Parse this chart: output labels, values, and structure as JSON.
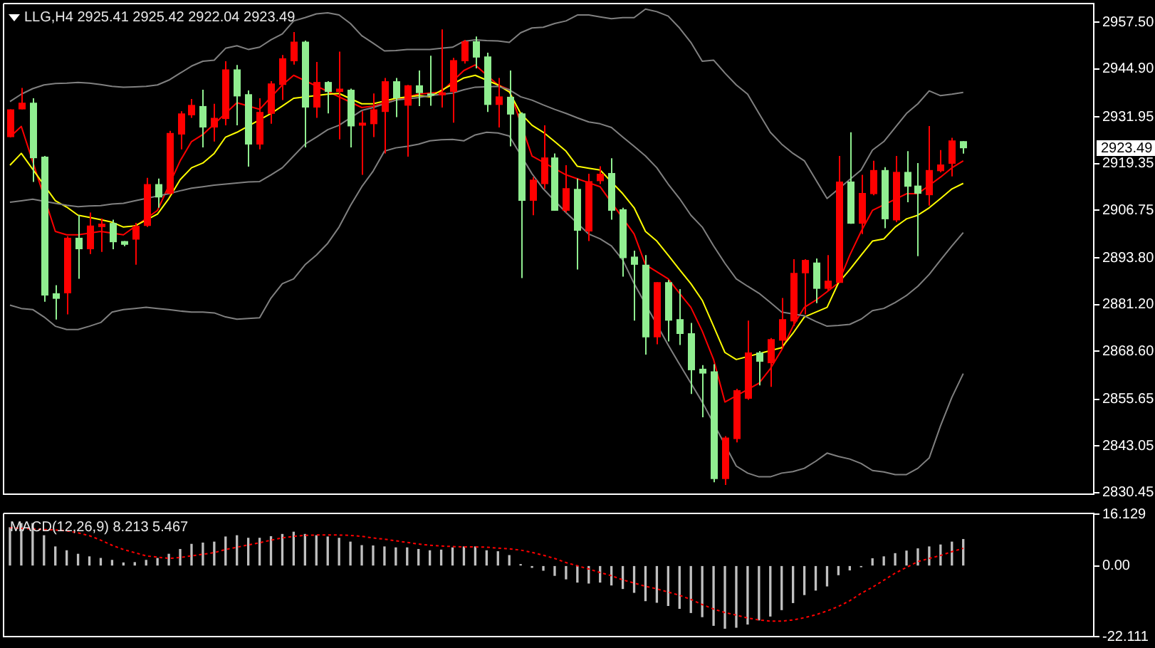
{
  "chart_data": [
    {
      "type": "candlestick",
      "title": "LLG,H4 2925.41 2925.42 2922.04 2923.49",
      "categories": [
        null,
        null,
        null,
        null,
        null,
        null,
        null,
        null,
        null,
        null,
        null,
        null,
        null,
        null,
        null,
        null,
        null,
        null,
        null,
        null,
        null,
        null,
        null,
        null,
        null,
        null,
        null,
        null,
        null,
        null,
        null,
        null,
        null,
        null,
        null,
        null,
        null,
        null,
        null,
        null,
        null,
        null,
        null,
        null,
        null,
        null,
        null,
        null,
        null,
        null,
        null,
        null,
        null,
        null,
        null,
        null,
        null,
        null,
        null,
        null,
        null,
        null,
        null,
        null,
        null,
        null,
        null,
        null,
        null,
        null,
        null,
        null,
        null,
        null,
        null,
        null,
        null,
        null,
        null,
        null,
        null,
        null,
        null,
        null,
        null
      ],
      "ohlc": [
        [
          2926.5,
          2934.0,
          2926.5,
          2934.0
        ],
        [
          2934.0,
          2939.8,
          2934.0,
          2935.8
        ],
        [
          2935.8,
          2937.0,
          2914.4,
          2920.8
        ],
        [
          2921.2,
          2921.4,
          2882.0,
          2883.7
        ],
        [
          2884.3,
          2886.5,
          2877.2,
          2882.8
        ],
        [
          2884.3,
          2899.7,
          2878.6,
          2899.3
        ],
        [
          2899.3,
          2905.4,
          2888.2,
          2896.2
        ],
        [
          2896.2,
          2906.1,
          2894.9,
          2902.6
        ],
        [
          2902.2,
          2904.5,
          2895.5,
          2903.1
        ],
        [
          2903.3,
          2904.2,
          2896.2,
          2898.1
        ],
        [
          2898.4,
          2898.4,
          2897.0,
          2897.4
        ],
        [
          2898.8,
          2903.3,
          2892.0,
          2902.5
        ],
        [
          2902.5,
          2915.5,
          2902.2,
          2913.8
        ],
        [
          2913.8,
          2915.3,
          2907.4,
          2910.2
        ],
        [
          2911.2,
          2928.2,
          2910.9,
          2927.6
        ],
        [
          2927.2,
          2933.5,
          2923.2,
          2932.9
        ],
        [
          2932.4,
          2936.8,
          2931.7,
          2935.2
        ],
        [
          2934.9,
          2939.3,
          2923.7,
          2929.1
        ],
        [
          2929.1,
          2935.5,
          2925.3,
          2931.7
        ],
        [
          2931.4,
          2947.0,
          2929.7,
          2944.8
        ],
        [
          2944.8,
          2946.0,
          2929.7,
          2937.5
        ],
        [
          2938.1,
          2939.1,
          2918.5,
          2924.5
        ],
        [
          2924.5,
          2937.0,
          2923.2,
          2933.3
        ],
        [
          2932.8,
          2941.6,
          2930.1,
          2941.0
        ],
        [
          2940.6,
          2948.7,
          2936.5,
          2947.8
        ],
        [
          2947.0,
          2954.9,
          2946.1,
          2952.3
        ],
        [
          2952.3,
          2952.6,
          2923.7,
          2934.5
        ],
        [
          2934.5,
          2946.8,
          2931.7,
          2941.4
        ],
        [
          2941.4,
          2941.6,
          2932.9,
          2938.7
        ],
        [
          2938.7,
          2949.6,
          2925.9,
          2939.6
        ],
        [
          2939.3,
          2939.6,
          2923.7,
          2929.4
        ],
        [
          2929.6,
          2933.5,
          2916.3,
          2930.4
        ],
        [
          2930.0,
          2938.3,
          2926.5,
          2934.0
        ],
        [
          2933.3,
          2942.5,
          2922.1,
          2941.6
        ],
        [
          2941.6,
          2942.5,
          2931.9,
          2937.0
        ],
        [
          2935.0,
          2940.6,
          2921.2,
          2940.5
        ],
        [
          2940.5,
          2944.5,
          2934.9,
          2938.4
        ],
        [
          2938.3,
          2948.5,
          2935.0,
          2937.7
        ],
        [
          2937.8,
          2955.6,
          2934.5,
          2938.6
        ],
        [
          2938.7,
          2947.9,
          2930.4,
          2947.3
        ],
        [
          2947.0,
          2952.8,
          2946.4,
          2952.4
        ],
        [
          2952.4,
          2953.7,
          2945.1,
          2948.0
        ],
        [
          2948.3,
          2949.3,
          2933.3,
          2935.2
        ],
        [
          2935.2,
          2942.5,
          2929.1,
          2937.5
        ],
        [
          2937.4,
          2944.5,
          2924.0,
          2932.6
        ],
        [
          2932.9,
          2933.2,
          2888.4,
          2909.3
        ],
        [
          2909.3,
          2915.7,
          2905.4,
          2915.0
        ],
        [
          2913.8,
          2929.7,
          2912.5,
          2921.0
        ],
        [
          2921.0,
          2922.1,
          2906.6,
          2906.6
        ],
        [
          2906.6,
          2918.9,
          2906.1,
          2912.7
        ],
        [
          2912.5,
          2915.3,
          2890.7,
          2901.2
        ],
        [
          2901.0,
          2916.6,
          2898.4,
          2914.6
        ],
        [
          2914.6,
          2918.6,
          2913.8,
          2916.6
        ],
        [
          2916.8,
          2920.8,
          2904.2,
          2906.6
        ],
        [
          2907.0,
          2907.4,
          2888.8,
          2893.8
        ],
        [
          2894.2,
          2895.8,
          2876.9,
          2892.0
        ],
        [
          2892.0,
          2894.6,
          2867.7,
          2872.4
        ],
        [
          2872.4,
          2887.3,
          2870.5,
          2887.3
        ],
        [
          2887.3,
          2887.9,
          2871.3,
          2876.9
        ],
        [
          2877.3,
          2885.4,
          2870.3,
          2873.3
        ],
        [
          2873.5,
          2876.3,
          2857.1,
          2863.5
        ],
        [
          2863.9,
          2864.9,
          2850.8,
          2862.6
        ],
        [
          2863.2,
          2865.1,
          2833.2,
          2834.1
        ],
        [
          2834.1,
          2845.7,
          2832.5,
          2845.3
        ],
        [
          2844.9,
          2858.5,
          2844.0,
          2858.1
        ],
        [
          2855.8,
          2876.9,
          2855.5,
          2868.3
        ],
        [
          2868.3,
          2868.7,
          2859.4,
          2865.8
        ],
        [
          2865.4,
          2872.2,
          2859.0,
          2871.9
        ],
        [
          2871.5,
          2883.0,
          2869.6,
          2877.3
        ],
        [
          2876.7,
          2893.5,
          2875.4,
          2889.8
        ],
        [
          2889.7,
          2893.5,
          2878.6,
          2893.3
        ],
        [
          2892.6,
          2893.7,
          2881.6,
          2885.5
        ],
        [
          2885.5,
          2894.6,
          2885.0,
          2887.7
        ],
        [
          2887.1,
          2921.4,
          2887.1,
          2914.5
        ],
        [
          2914.5,
          2927.8,
          2903.1,
          2903.1
        ],
        [
          2903.1,
          2916.3,
          2900.3,
          2911.4
        ],
        [
          2911.1,
          2920.1,
          2910.8,
          2917.6
        ],
        [
          2917.6,
          2918.4,
          2901.9,
          2904.3
        ],
        [
          2904.0,
          2921.4,
          2903.5,
          2917.1
        ],
        [
          2917.1,
          2922.7,
          2908.9,
          2913.1
        ],
        [
          2913.4,
          2919.5,
          2894.3,
          2911.2
        ],
        [
          2910.8,
          2929.5,
          2908.0,
          2917.6
        ],
        [
          2917.3,
          2923.0,
          2917.0,
          2919.1
        ],
        [
          2919.3,
          2926.3,
          2915.9,
          2925.6
        ],
        [
          2925.41,
          2925.42,
          2922.04,
          2923.49
        ]
      ],
      "colors": [
        "#ff0000",
        "#ff0000",
        "#90ee90",
        "#90ee90",
        "#90ee90",
        "#ff0000",
        "#90ee90",
        "#ff0000",
        "#ff0000",
        "#90ee90",
        "#90ee90",
        "#ff0000",
        "#ff0000",
        "#90ee90",
        "#ff0000",
        "#ff0000",
        "#ff0000",
        "#90ee90",
        "#ff0000",
        "#ff0000",
        "#90ee90",
        "#90ee90",
        "#ff0000",
        "#ff0000",
        "#ff0000",
        "#ff0000",
        "#90ee90",
        "#ff0000",
        "#90ee90",
        "#ff0000",
        "#90ee90",
        "#ff0000",
        "#ff0000",
        "#ff0000",
        "#90ee90",
        "#ff0000",
        "#90ee90",
        "#90ee90",
        "#ff0000",
        "#ff0000",
        "#ff0000",
        "#90ee90",
        "#90ee90",
        "#ff0000",
        "#90ee90",
        "#90ee90",
        "#ff0000",
        "#ff0000",
        "#90ee90",
        "#ff0000",
        "#90ee90",
        "#ff0000",
        "#ff0000",
        "#90ee90",
        "#90ee90",
        "#90ee90",
        "#90ee90",
        "#ff0000",
        "#90ee90",
        "#90ee90",
        "#90ee90",
        "#90ee90",
        "#90ee90",
        "#ff0000",
        "#ff0000",
        "#ff0000",
        "#90ee90",
        "#ff0000",
        "#ff0000",
        "#ff0000",
        "#ff0000",
        "#90ee90",
        "#ff0000",
        "#ff0000",
        "#90ee90",
        "#ff0000",
        "#ff0000",
        "#90ee90",
        "#ff0000",
        "#90ee90",
        "#90ee90",
        "#ff0000",
        "#ff0000",
        "#ff0000",
        "#90ee90"
      ],
      "series": [
        {
          "type": "line",
          "color": "#808080",
          "values": [
            2936.1,
            2938.1,
            2939.6,
            2940.6,
            2941.0,
            2941.1,
            2941.3,
            2941.1,
            2940.7,
            2940.2,
            2940.0,
            2940.1,
            2940.2,
            2940.6,
            2941.9,
            2943.8,
            2945.7,
            2947.0,
            2947.3,
            2950.5,
            2951.2,
            2950.2,
            2950.8,
            2952.8,
            2954.4,
            2957.9,
            2958.8,
            2959.8,
            2960.1,
            2959.5,
            2957.2,
            2953.9,
            2951.9,
            2949.8,
            2949.9,
            2950.2,
            2950.2,
            2950.2,
            2950.5,
            2950.8,
            2952.4,
            2952.8,
            2952.6,
            2952.5,
            2952.1,
            2954.7,
            2956.0,
            2956.2,
            2957.2,
            2957.9,
            2959.5,
            2959.5,
            2959.0,
            2958.5,
            2958.8,
            2958.8,
            2961.1,
            2960.4,
            2959.2,
            2956.0,
            2952.1,
            2947.0,
            2947.3,
            2943.8,
            2940.6,
            2938.1,
            2932.9,
            2927.8,
            2924.6,
            2922.1,
            2920.1,
            2915.0,
            2909.9,
            null,
            null,
            2917.6,
            2923.0,
            2925.3,
            2929.1,
            2932.9,
            2935.5,
            2939.0,
            2937.7,
            2938.1,
            2938.6
          ]
        },
        {
          "type": "line",
          "color": "#808080",
          "values": [
            2908.9,
            2909.3,
            2909.7,
            null,
            2908.6,
            2908.1,
            2907.7,
            2907.9,
            2908.0,
            2908.4,
            2908.6,
            2909.3,
            null,
            null,
            2911.2,
            2912.0,
            2912.7,
            2913.1,
            2913.5,
            2913.8,
            2914.1,
            2914.4,
            2914.5,
            2916.3,
            2918.2,
            2921.4,
            2924.6,
            2926.5,
            2928.5,
            2929.7,
            null,
            2933.7,
            2934.5,
            null,
            2936.5,
            null,
            2937.2,
            2937.7,
            null,
            2938.4,
            2939.3,
            2940.0,
            null,
            2940.2,
            2939.3,
            2937.4,
            2936.5,
            2935.2,
            2934.0,
            2932.9,
            2931.7,
            2930.6,
            2930.1,
            2929.1,
            2926.5,
            2924.0,
            2921.4,
            2918.2,
            2913.8,
            2909.9,
            2905.4,
            2902.2,
            2897.1,
            2892.4,
            2888.2,
            2886.2,
            2884.3,
            2881.8,
            2879.2,
            null,
            2878.2,
            2876.7,
            2875.4,
            2875.6,
            2875.9,
            2877.3,
            2879.6,
            2880.2,
            2881.8,
            2883.7,
            2886.2,
            2889.4,
            2893.3,
            2897.1,
            2900.7
          ]
        },
        {
          "type": "line",
          "color": "#808080",
          "values": [
            2881.1,
            2880.2,
            2879.9,
            2877.9,
            2875.4,
            2874.5,
            2874.5,
            2875.4,
            2876.4,
            2879.2,
            2879.9,
            2880.2,
            2880.5,
            2880.2,
            2879.9,
            2879.5,
            2879.2,
            2879.2,
            2879.0,
            2877.9,
            2877.3,
            2877.5,
            2877.7,
            2883.0,
            2886.9,
            2888.2,
            2892.0,
            2894.6,
            2897.8,
            2902.2,
            2908.0,
            2913.1,
            2917.3,
            2922.7,
            2923.6,
            2924.0,
            2924.6,
            2925.5,
            2925.8,
            2925.9,
            2925.5,
            2927.1,
            2927.8,
            2927.6,
            2926.8,
            null,
            2916.6,
            2912.5,
            null,
            2906.1,
            null,
            2900.3,
            2899.0,
            2897.1,
            2893.3,
            2886.9,
            null,
            null,
            2870.3,
            2865.1,
            2860.0,
            2854.9,
            null,
            null,
            2837.6,
            2835.7,
            2834.7,
            2834.7,
            2835.7,
            2836.1,
            2837.0,
            2838.9,
            2841.1,
            2840.2,
            2839.5,
            2838.3,
            2836.4,
            2836.0,
            2835.3,
            2835.3,
            2837.0,
            2839.8,
            2848.5,
            2856.2,
            2862.6
          ]
        },
        {
          "type": "line",
          "color": "#ffff00",
          "values": [
            2918.9,
            2922.1,
            null,
            null,
            2909.3,
            2907.6,
            2905.4,
            2904.8,
            2904.2,
            2903.5,
            2902.2,
            2902.5,
            null,
            2905.7,
            2909.9,
            2915.0,
            2918.2,
            2919.5,
            2922.1,
            2926.5,
            2927.8,
            null,
            null,
            2932.9,
            2934.9,
            2937.0,
            null,
            null,
            2938.1,
            2938.3,
            null,
            2935.5,
            2935.5,
            null,
            2937.0,
            null,
            2937.7,
            2937.4,
            null,
            null,
            2942.5,
            2943.2,
            null,
            2940.6,
            2938.7,
            2932.9,
            2929.7,
            2927.8,
            2925.3,
            2922.7,
            2918.6,
            2918.1,
            2917.6,
            null,
            2911.2,
            2907.4,
            2901.0,
            2898.4,
            2894.6,
            2890.7,
            2886.9,
            2882.4,
            2875.4,
            2868.3,
            2866.4,
            null,
            null,
            null,
            2869.6,
            2873.5,
            2877.9,
            2879.2,
            2880.5,
            2887.1,
            2890.7,
            2894.6,
            2898.4,
            2899.0,
            2902.2,
            2904.4,
            2905.4,
            2907.4,
            2909.9,
            2912.5,
            2914.0
          ]
        },
        {
          "type": "line",
          "color": "#ff0000",
          "values": [
            2926.5,
            2929.4,
            null,
            null,
            2901.0,
            2900.1,
            2900.1,
            null,
            2901.0,
            null,
            2900.1,
            null,
            null,
            2906.7,
            null,
            2920.1,
            2925.3,
            2927.2,
            null,
            null,
            2935.8,
            null,
            2934.0,
            null,
            2940.6,
            2943.2,
            null,
            null,
            null,
            null,
            null,
            2934.5,
            2934.9,
            null,
            null,
            null,
            2938.1,
            null,
            2938.7,
            null,
            2944.5,
            2946.0,
            null,
            2940.6,
            2939.3,
            null,
            2921.4,
            null,
            null,
            2916.3,
            null,
            null,
            2913.1,
            null,
            null,
            2900.3,
            2892.0,
            2890.1,
            2888.2,
            2884.3,
            2880.5,
            2874.1,
            2866.4,
            2854.9,
            null,
            null,
            2860.0,
            2863.9,
            2869.0,
            2875.4,
            2880.5,
            2882.4,
            2884.7,
            2887.1,
            2894.6,
            2901.0,
            2906.7,
            null,
            null,
            2911.2,
            2911.2,
            null,
            2915.7,
            2918.2,
            2920.1
          ]
        }
      ],
      "ylim": [
        2830.0,
        2962.4
      ],
      "yticks": [
        {
          "value": 2957.5,
          "label": "2957.50"
        },
        {
          "value": 2944.9,
          "label": "2944.90"
        },
        2931.95,
        2919.35,
        2906.75,
        {
          "value": 2893.8,
          "label": "2893.80"
        },
        {
          "value": 2881.2,
          "label": "2881.20"
        },
        {
          "value": 2868.6,
          "label": "2868.60"
        },
        2855.65,
        2843.05,
        2830.45
      ],
      "tick_labels": "y",
      "annotations": [
        "2923.49"
      ]
    },
    {
      "type": "bar",
      "title": "MACD(12,26,9) 8.213 5.467",
      "categories": [
        null,
        null,
        null,
        null,
        null,
        null,
        null,
        null,
        null,
        null,
        null,
        null,
        null,
        null,
        null,
        null,
        null,
        null,
        null,
        null,
        null,
        null,
        null,
        null,
        null,
        null,
        null,
        null,
        null,
        null,
        null,
        null,
        null,
        null,
        null,
        null,
        null,
        null,
        null,
        null,
        null,
        null,
        null,
        null,
        null,
        null,
        null,
        null,
        null,
        null,
        null,
        null,
        null,
        null,
        null,
        null,
        null,
        null,
        null,
        null,
        null,
        null,
        null,
        null,
        null,
        null,
        null,
        null,
        null,
        null,
        null,
        null,
        null,
        null,
        null,
        null,
        null,
        null,
        null,
        null,
        null,
        null,
        null,
        null,
        null
      ],
      "series": [
        {
          "type": "bar",
          "color": "#c0c0c0",
          "values": [
            11.9,
            13.2,
            13.2,
            9.4,
            5.9,
            4.7,
            3.6,
            2.8,
            2.3,
            1.7,
            0.9,
            1.0,
            1.7,
            2.3,
            3.6,
            5.1,
            6.7,
            7.1,
            7.4,
            9.0,
            9.4,
            8.6,
            8.6,
            9.1,
            9.8,
            10.5,
            9.8,
            9.4,
            9.0,
            8.6,
            7.4,
            6.3,
            6.2,
            5.9,
            5.6,
            5.6,
            5.1,
            4.7,
            4.9,
            5.6,
            5.9,
            5.9,
            4.7,
            4.4,
            3.2,
            0.4,
            -0.5,
            -1.4,
            -3.0,
            -4.1,
            -5.1,
            -5.4,
            -5.1,
            -6.0,
            -7.1,
            -8.3,
            -10.9,
            -11.4,
            -12.4,
            -13.3,
            -14.6,
            -15.9,
            -18.6,
            -19.5,
            -19.2,
            -18.2,
            -16.9,
            -15.7,
            -13.7,
            -11.5,
            -9.0,
            -7.6,
            -6.3,
            -2.8,
            -1.3,
            -0.3,
            2.2,
            2.8,
            3.8,
            4.6,
            5.3,
            5.9,
            6.5,
            7.4,
            8.213
          ]
        },
        {
          "type": "line",
          "color": "#ff0000",
          "line_style": "dotted",
          "values": [
            11.9,
            11.7,
            11.5,
            11.3,
            11.2,
            10.9,
            10.3,
            9.4,
            8.0,
            6.4,
            5.1,
            4.1,
            3.1,
            2.7,
            2.3,
            2.6,
            3.1,
            3.6,
            4.1,
            5.1,
            5.8,
            6.5,
            7.2,
            8.0,
            8.7,
            9.2,
            9.5,
            9.6,
            9.6,
            9.6,
            9.5,
            9.2,
            8.7,
            8.3,
            7.8,
            7.3,
            6.8,
            6.4,
            6.2,
            6.0,
            5.9,
            5.9,
            5.8,
            5.5,
            5.3,
            4.9,
            4.2,
            3.3,
            2.3,
            1.0,
            0.0,
            -1.0,
            -2.1,
            -3.1,
            -4.4,
            -5.4,
            -6.4,
            -7.2,
            -8.2,
            -9.2,
            -10.5,
            -12.1,
            -13.5,
            -14.6,
            -15.4,
            -16.3,
            -16.9,
            -17.3,
            -17.3,
            -16.9,
            -16.2,
            -15.3,
            -14.1,
            -12.7,
            -10.9,
            -8.6,
            -6.7,
            -4.5,
            -2.3,
            -0.5,
            1.3,
            2.3,
            3.2,
            4.4,
            5.467
          ]
        }
      ],
      "ylim": [
        -22.111,
        16.129
      ],
      "yticks": [
        16.129,
        {
          "value": 0,
          "label": "0.00"
        },
        -22.111
      ],
      "tick_labels": "y"
    }
  ]
}
